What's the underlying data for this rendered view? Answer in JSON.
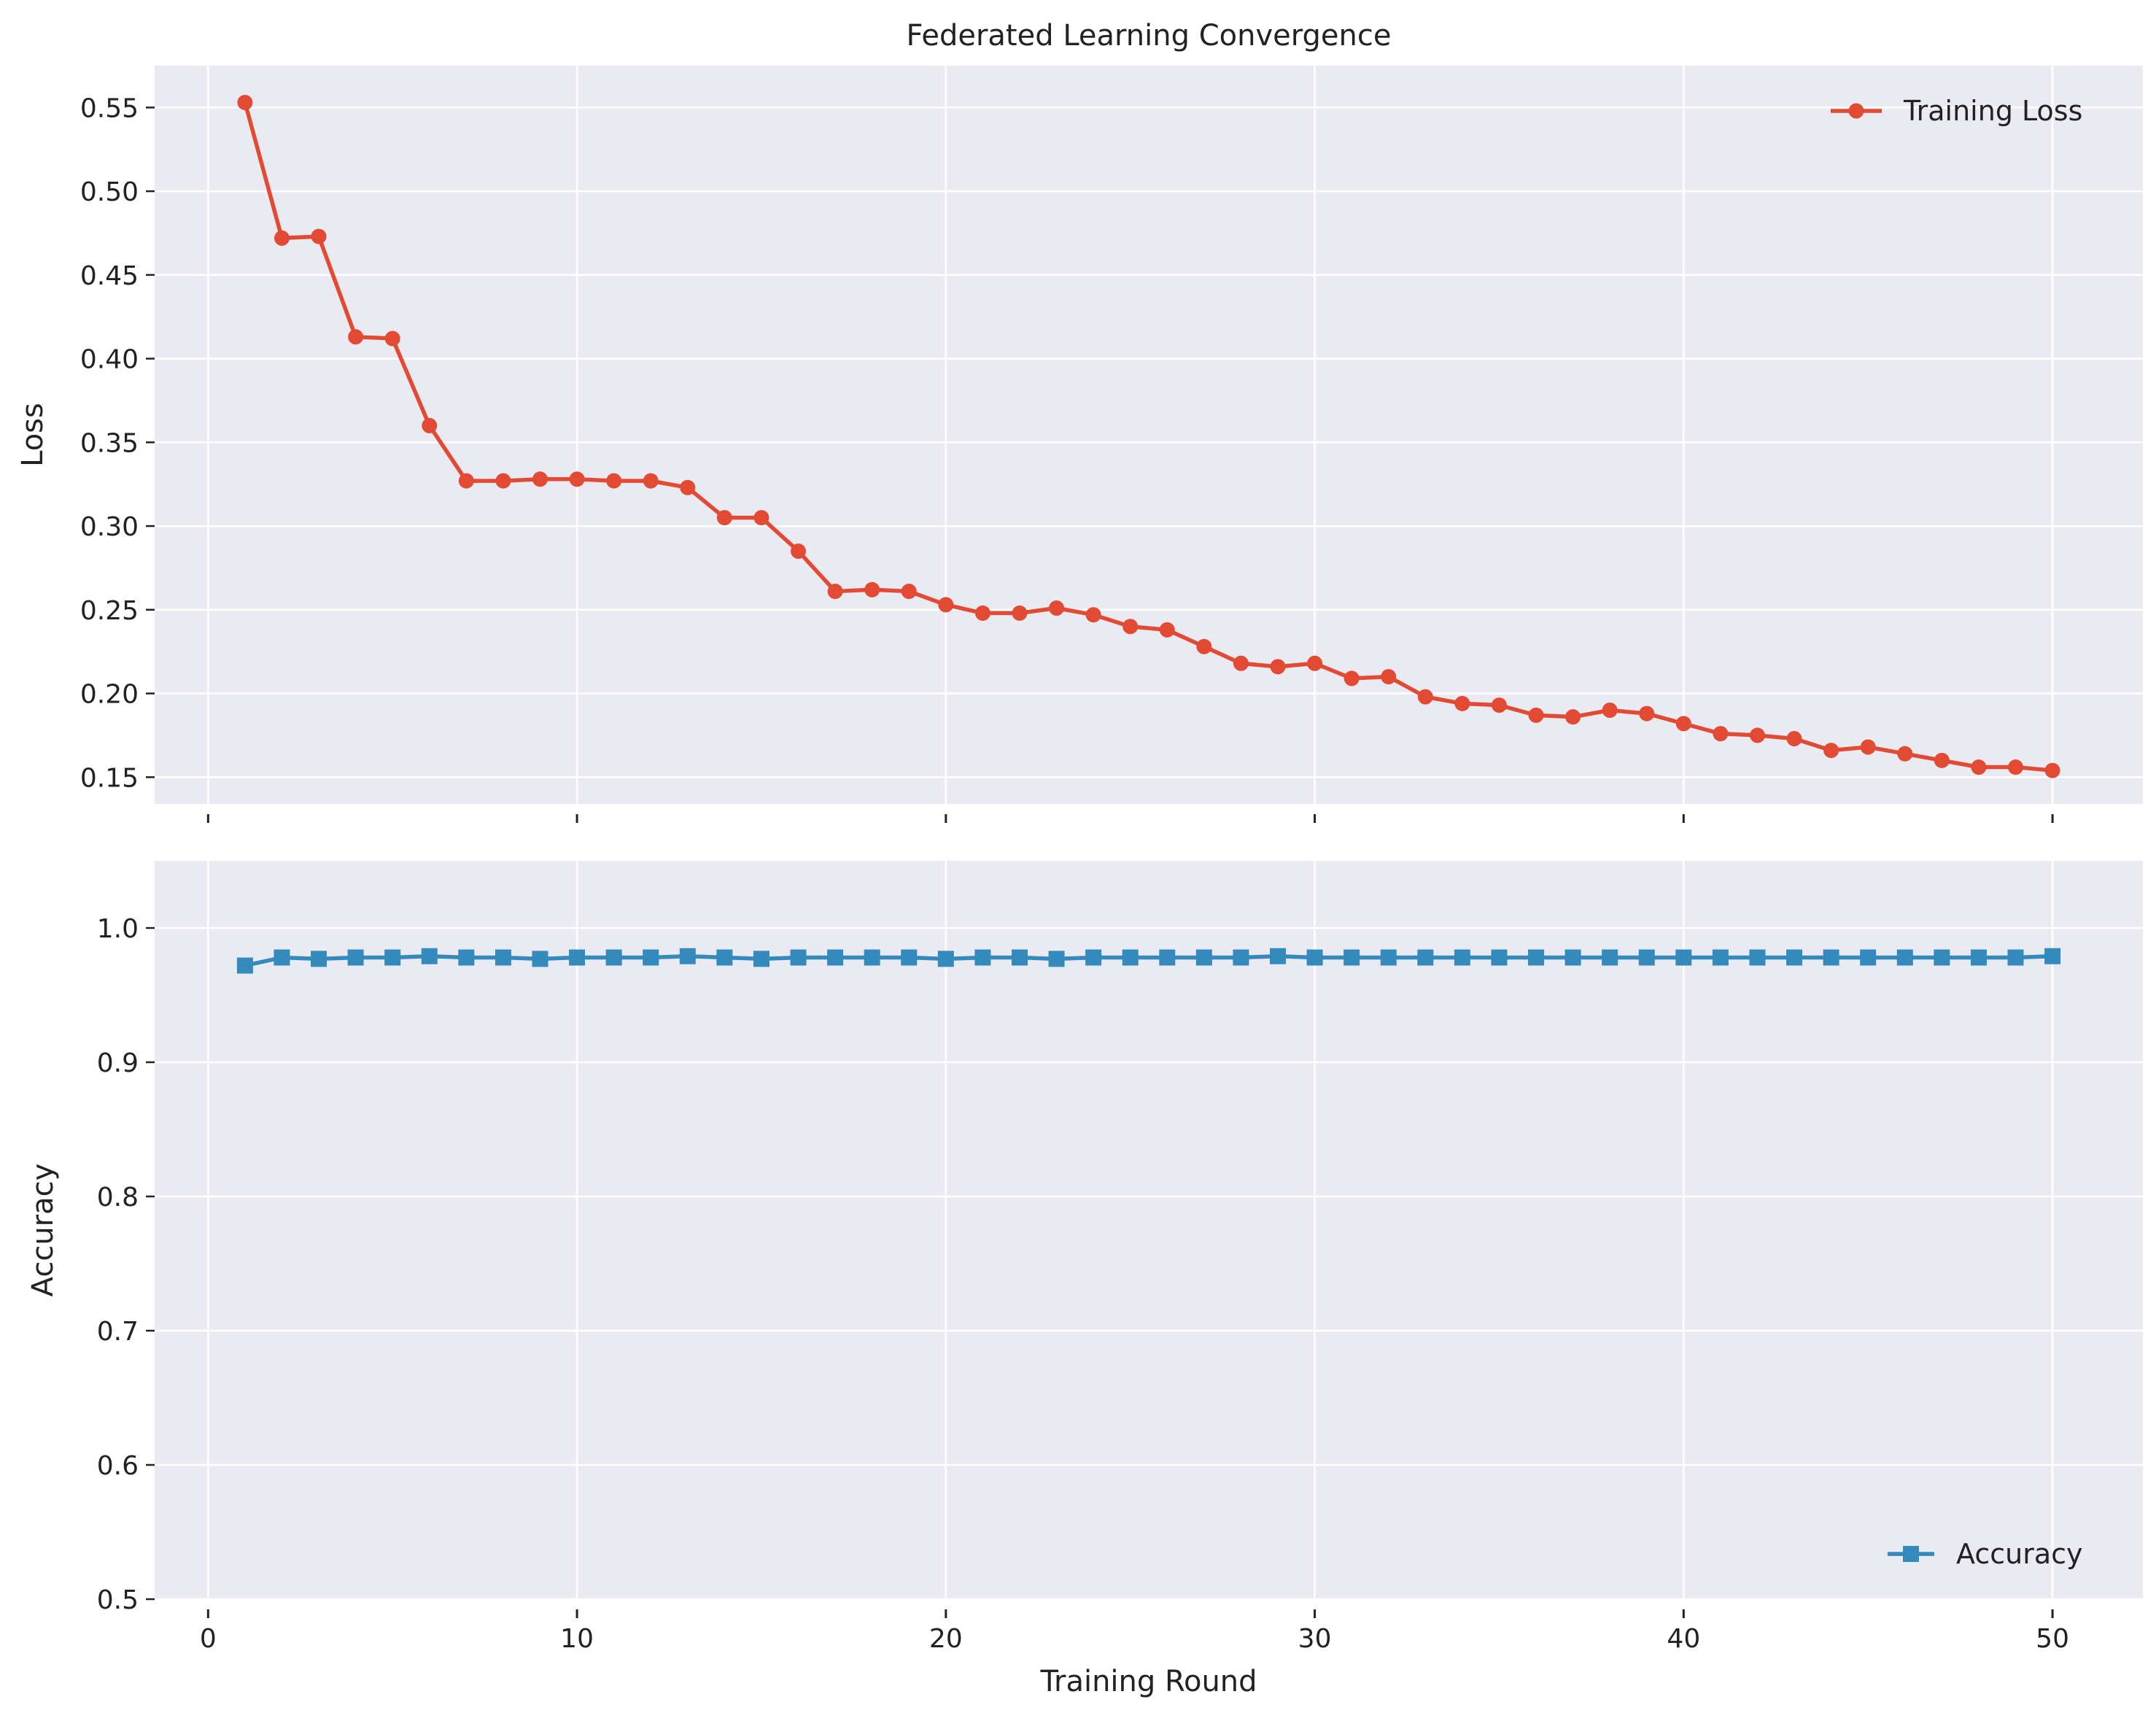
{
  "colors": {
    "background": "#ffffff",
    "plot_background": "#eaeaf2",
    "grid": "#ffffff",
    "loss_line": "#e24a33",
    "accuracy_line": "#348abd",
    "text": "#222222"
  },
  "chart_data": [
    {
      "type": "line",
      "title": "Federated Learning Convergence",
      "xlabel": "",
      "ylabel": "Loss",
      "xlim": [
        -1.45,
        52.45
      ],
      "ylim": [
        0.134,
        0.575
      ],
      "xticks": [
        0,
        10,
        20,
        30,
        40,
        50
      ],
      "xtick_labels_visible": false,
      "yticks": [
        0.15,
        0.2,
        0.25,
        0.3,
        0.35,
        0.4,
        0.45,
        0.5,
        0.55
      ],
      "ytick_labels": [
        "0.15",
        "0.20",
        "0.25",
        "0.30",
        "0.35",
        "0.40",
        "0.45",
        "0.50",
        "0.55"
      ],
      "grid": true,
      "legend_position": "upper-right",
      "series": [
        {
          "name": "Training Loss",
          "marker": "circle",
          "color": "#e24a33",
          "x": [
            1,
            2,
            3,
            4,
            5,
            6,
            7,
            8,
            9,
            10,
            11,
            12,
            13,
            14,
            15,
            16,
            17,
            18,
            19,
            20,
            21,
            22,
            23,
            24,
            25,
            26,
            27,
            28,
            29,
            30,
            31,
            32,
            33,
            34,
            35,
            36,
            37,
            38,
            39,
            40,
            41,
            42,
            43,
            44,
            45,
            46,
            47,
            48,
            49,
            50
          ],
          "values": [
            0.553,
            0.472,
            0.473,
            0.413,
            0.412,
            0.36,
            0.327,
            0.327,
            0.328,
            0.328,
            0.327,
            0.327,
            0.323,
            0.305,
            0.305,
            0.285,
            0.261,
            0.262,
            0.261,
            0.253,
            0.248,
            0.248,
            0.251,
            0.247,
            0.24,
            0.238,
            0.228,
            0.218,
            0.216,
            0.218,
            0.209,
            0.21,
            0.198,
            0.194,
            0.193,
            0.187,
            0.186,
            0.19,
            0.188,
            0.182,
            0.176,
            0.175,
            0.173,
            0.166,
            0.168,
            0.164,
            0.16,
            0.156,
            0.156,
            0.154
          ]
        }
      ]
    },
    {
      "type": "line",
      "title": "",
      "xlabel": "Training Round",
      "ylabel": "Accuracy",
      "xlim": [
        -1.45,
        52.45
      ],
      "ylim": [
        0.5,
        1.05
      ],
      "xticks": [
        0,
        10,
        20,
        30,
        40,
        50
      ],
      "xtick_labels": [
        "0",
        "10",
        "20",
        "30",
        "40",
        "50"
      ],
      "yticks": [
        0.5,
        0.6,
        0.7,
        0.8,
        0.9,
        1.0
      ],
      "ytick_labels": [
        "0.5",
        "0.6",
        "0.7",
        "0.8",
        "0.9",
        "1.0"
      ],
      "grid": true,
      "legend_position": "lower-right",
      "series": [
        {
          "name": "Accuracy",
          "marker": "square",
          "color": "#348abd",
          "x": [
            1,
            2,
            3,
            4,
            5,
            6,
            7,
            8,
            9,
            10,
            11,
            12,
            13,
            14,
            15,
            16,
            17,
            18,
            19,
            20,
            21,
            22,
            23,
            24,
            25,
            26,
            27,
            28,
            29,
            30,
            31,
            32,
            33,
            34,
            35,
            36,
            37,
            38,
            39,
            40,
            41,
            42,
            43,
            44,
            45,
            46,
            47,
            48,
            49,
            50
          ],
          "values": [
            0.972,
            0.978,
            0.977,
            0.978,
            0.978,
            0.979,
            0.978,
            0.978,
            0.977,
            0.978,
            0.978,
            0.978,
            0.979,
            0.978,
            0.977,
            0.978,
            0.978,
            0.978,
            0.978,
            0.977,
            0.978,
            0.978,
            0.977,
            0.978,
            0.978,
            0.978,
            0.978,
            0.978,
            0.979,
            0.978,
            0.978,
            0.978,
            0.978,
            0.978,
            0.978,
            0.978,
            0.978,
            0.978,
            0.978,
            0.978,
            0.978,
            0.978,
            0.978,
            0.978,
            0.978,
            0.978,
            0.978,
            0.978,
            0.978,
            0.979
          ]
        }
      ]
    }
  ]
}
